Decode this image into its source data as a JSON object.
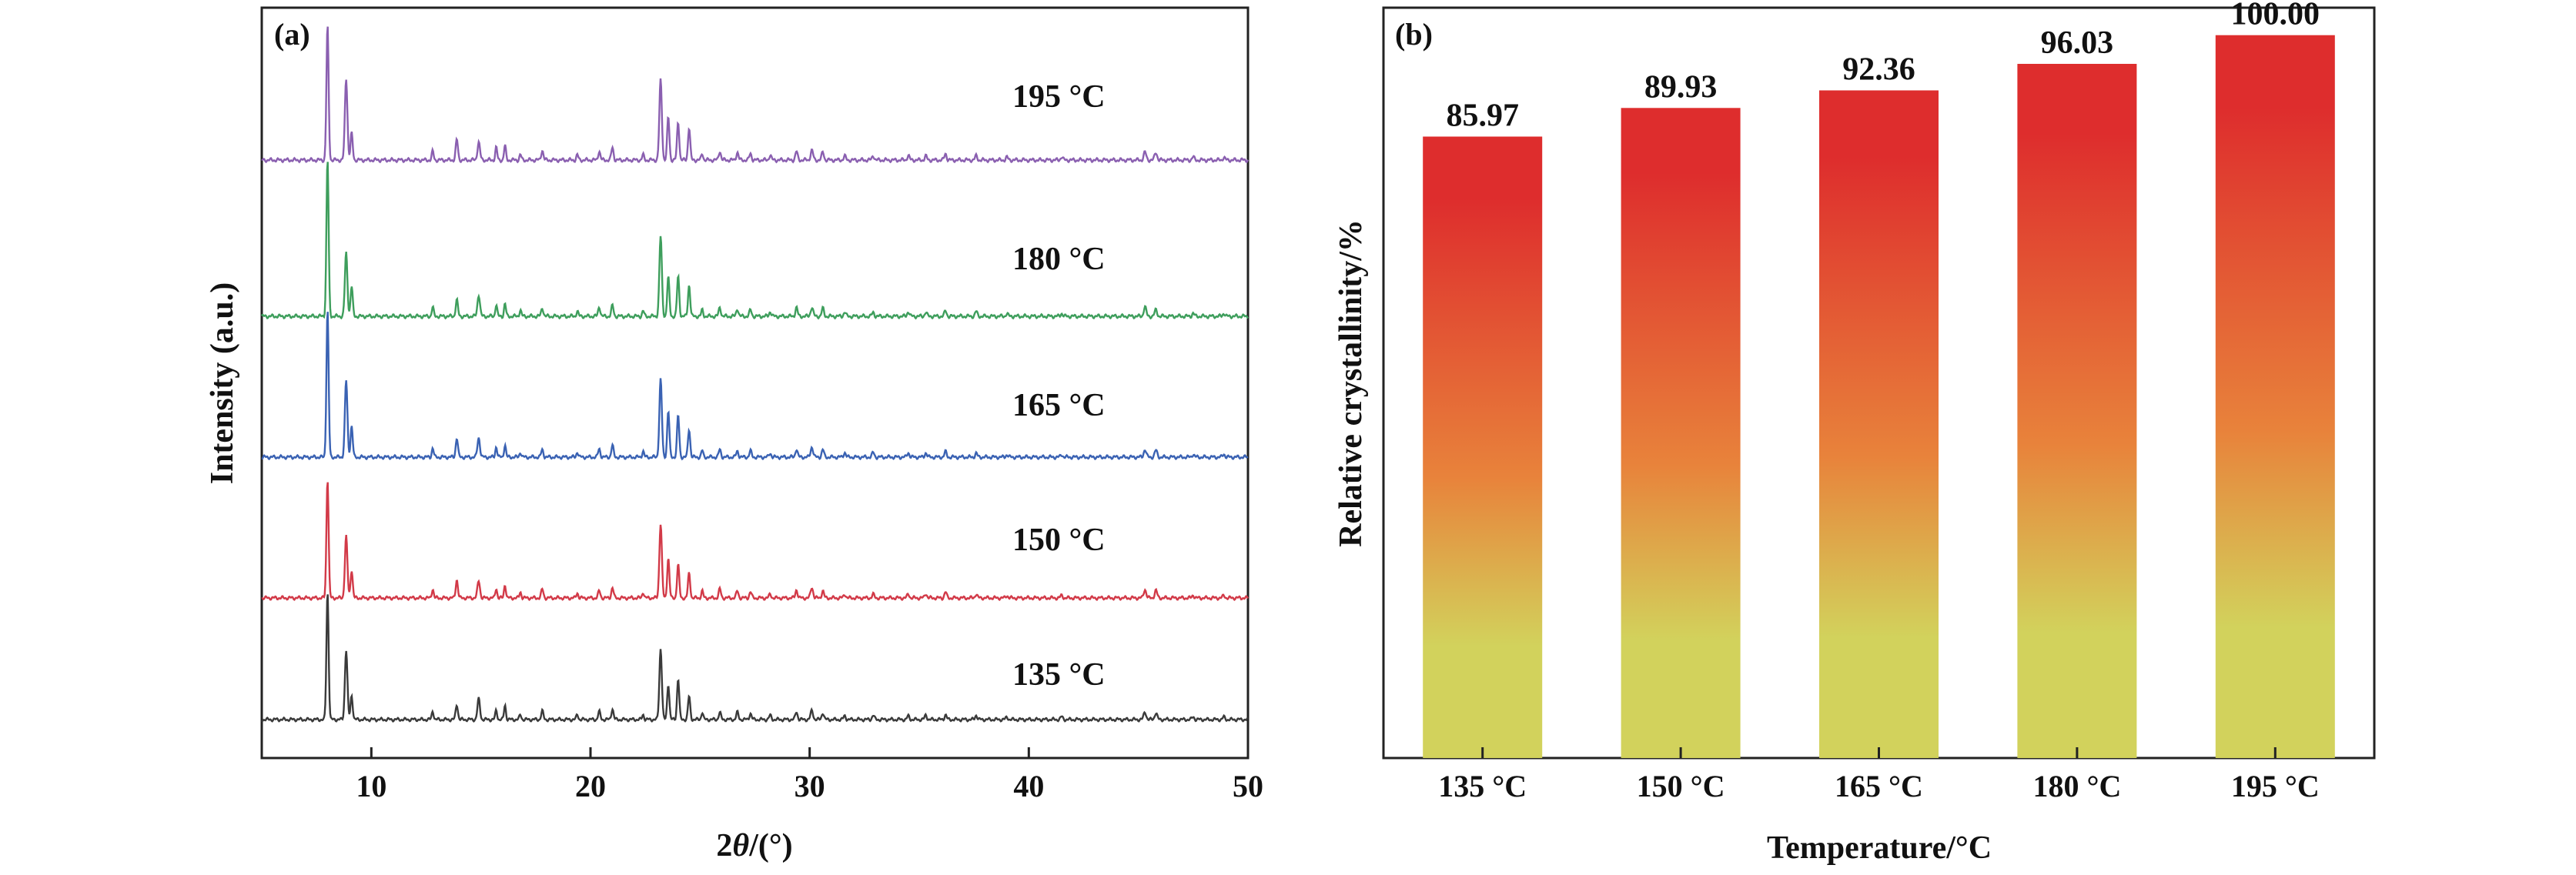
{
  "chart_data": [
    {
      "panel_label": "(a)",
      "type": "line",
      "xlabel_pre": "2",
      "xlabel_theta": "θ",
      "xlabel_post": "/(°)",
      "ylabel": "Intensity (a.u.)",
      "xlim": [
        5,
        50
      ],
      "xticks": [
        10,
        20,
        30,
        40,
        50
      ],
      "grid": false,
      "legend": "none",
      "peaks": [
        {
          "x": 8.0,
          "h": 1.0,
          "w": 0.07
        },
        {
          "x": 8.85,
          "h": 0.5,
          "w": 0.08
        },
        {
          "x": 9.1,
          "h": 0.2,
          "w": 0.07
        },
        {
          "x": 12.8,
          "h": 0.06,
          "w": 0.06
        },
        {
          "x": 13.9,
          "h": 0.13,
          "w": 0.07
        },
        {
          "x": 14.9,
          "h": 0.14,
          "w": 0.08
        },
        {
          "x": 15.7,
          "h": 0.08,
          "w": 0.06
        },
        {
          "x": 16.1,
          "h": 0.1,
          "w": 0.06
        },
        {
          "x": 16.8,
          "h": 0.04,
          "w": 0.06
        },
        {
          "x": 17.8,
          "h": 0.06,
          "w": 0.07
        },
        {
          "x": 19.4,
          "h": 0.04,
          "w": 0.06
        },
        {
          "x": 20.4,
          "h": 0.06,
          "w": 0.07
        },
        {
          "x": 21.0,
          "h": 0.08,
          "w": 0.07
        },
        {
          "x": 22.4,
          "h": 0.04,
          "w": 0.06
        },
        {
          "x": 23.2,
          "h": 0.5,
          "w": 0.08
        },
        {
          "x": 23.55,
          "h": 0.3,
          "w": 0.07
        },
        {
          "x": 24.0,
          "h": 0.28,
          "w": 0.07
        },
        {
          "x": 24.5,
          "h": 0.2,
          "w": 0.07
        },
        {
          "x": 25.1,
          "h": 0.05,
          "w": 0.06
        },
        {
          "x": 25.9,
          "h": 0.06,
          "w": 0.07
        },
        {
          "x": 26.7,
          "h": 0.05,
          "w": 0.07
        },
        {
          "x": 27.3,
          "h": 0.05,
          "w": 0.07
        },
        {
          "x": 28.2,
          "h": 0.03,
          "w": 0.07
        },
        {
          "x": 29.4,
          "h": 0.06,
          "w": 0.07
        },
        {
          "x": 30.1,
          "h": 0.07,
          "w": 0.08
        },
        {
          "x": 30.6,
          "h": 0.05,
          "w": 0.07
        },
        {
          "x": 31.6,
          "h": 0.03,
          "w": 0.07
        },
        {
          "x": 32.9,
          "h": 0.03,
          "w": 0.07
        },
        {
          "x": 34.5,
          "h": 0.03,
          "w": 0.07
        },
        {
          "x": 35.3,
          "h": 0.03,
          "w": 0.07
        },
        {
          "x": 36.2,
          "h": 0.04,
          "w": 0.07
        },
        {
          "x": 37.6,
          "h": 0.03,
          "w": 0.07
        },
        {
          "x": 39.0,
          "h": 0.02,
          "w": 0.07
        },
        {
          "x": 41.5,
          "h": 0.02,
          "w": 0.07
        },
        {
          "x": 45.3,
          "h": 0.06,
          "w": 0.08
        },
        {
          "x": 45.8,
          "h": 0.05,
          "w": 0.08
        },
        {
          "x": 47.5,
          "h": 0.02,
          "w": 0.07
        },
        {
          "x": 48.9,
          "h": 0.02,
          "w": 0.07
        }
      ],
      "series": [
        {
          "name": "135 °C",
          "color": "#3a3a3a",
          "scale": 0.9
        },
        {
          "name": "150 °C",
          "color": "#d23a48",
          "scale": 0.92
        },
        {
          "name": "165 °C",
          "color": "#3a62b3",
          "scale": 0.95
        },
        {
          "name": "180 °C",
          "color": "#3e9e5c",
          "scale": 0.98
        },
        {
          "name": "195 °C",
          "color": "#8a5fb0",
          "scale": 1.0
        }
      ]
    },
    {
      "panel_label": "(b)",
      "type": "bar",
      "xlabel": "Temperature/°C",
      "ylabel": "Relative crystallinity/%",
      "categories": [
        "135 °C",
        "150 °C",
        "165 °C",
        "180 °C",
        "195 °C"
      ],
      "values": [
        85.97,
        89.93,
        92.36,
        96.03,
        100.0
      ],
      "value_labels": [
        "85.97",
        "89.93",
        "92.36",
        "96.03",
        "100.00"
      ],
      "ylim": [
        0,
        103.8
      ],
      "grid": false,
      "gradient_top": "#de2d2d",
      "gradient_mid": "#e8833b",
      "gradient_bottom": "#d2d25c"
    }
  ]
}
